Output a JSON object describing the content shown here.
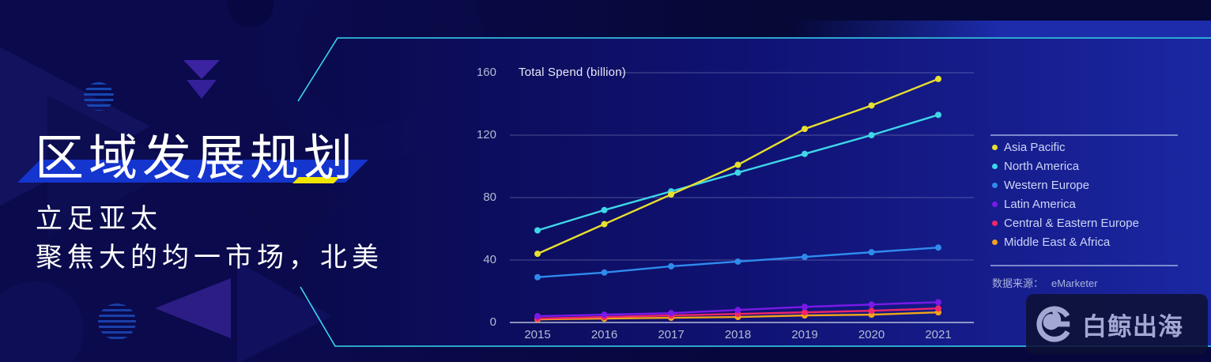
{
  "headline": {
    "title": "区域发展规划",
    "subtitle_lines": [
      "立足亚太",
      "聚焦大的均一市场，北美"
    ]
  },
  "chart_data": {
    "type": "line",
    "title": "Total Spend (billion)",
    "x": [
      2015,
      2016,
      2017,
      2018,
      2019,
      2020,
      2021
    ],
    "yticks": [
      0,
      40,
      80,
      120,
      160
    ],
    "ylim": [
      0,
      160
    ],
    "grid": "horizontal",
    "legend_position": "right",
    "series": [
      {
        "name": "Asia Pacific",
        "color": "#e8e02e",
        "values": [
          44,
          63,
          82,
          101,
          124,
          139,
          156
        ]
      },
      {
        "name": "North America",
        "color": "#3ed7e8",
        "values": [
          59,
          72,
          84,
          96,
          108,
          120,
          133
        ]
      },
      {
        "name": "Western Europe",
        "color": "#2f8bee",
        "values": [
          29,
          32,
          36,
          39,
          42,
          45,
          48
        ]
      },
      {
        "name": "Latin America",
        "color": "#7a1ae8",
        "values": [
          4,
          5,
          6,
          8,
          10,
          11.5,
          13
        ]
      },
      {
        "name": "Central & Eastern Europe",
        "color": "#f2256b",
        "values": [
          2.5,
          3.5,
          4.5,
          5.5,
          6.5,
          7.5,
          9
        ]
      },
      {
        "name": "Middle East & Africa",
        "color": "#f0a41a",
        "values": [
          2,
          2.5,
          3,
          3.5,
          4.5,
          5,
          6.5
        ]
      }
    ],
    "source_label": "数据来源：",
    "source_value": "eMarketer"
  },
  "logo": {
    "text": "白鲸出海",
    "icon": "whale-logo-icon"
  },
  "colors": {
    "accent_cyan": "#38d8f2",
    "title_highlight_blue": "#1535cf",
    "underline_yellow": "#f2e600",
    "panel_blue": "#1b27a2",
    "background_navy": "#0a0a4c"
  }
}
